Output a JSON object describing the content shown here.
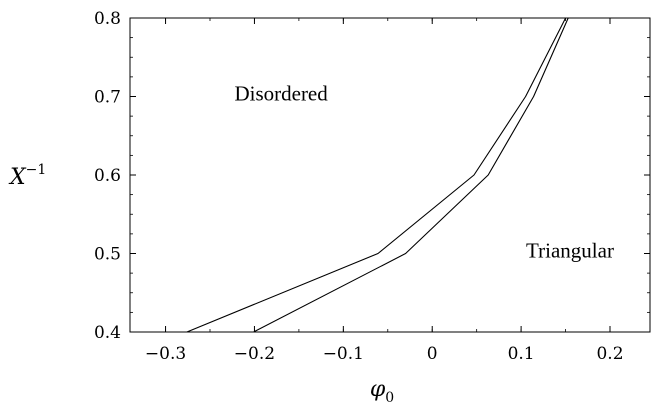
{
  "chart_data": {
    "type": "line",
    "title": "",
    "xlabel": {
      "base": "φ",
      "sub": "0"
    },
    "ylabel": {
      "base": "X",
      "sup": "−1"
    },
    "xlim": [
      -0.34,
      0.245
    ],
    "ylim": [
      0.4,
      0.8
    ],
    "x_ticks": [
      {
        "value": -0.3,
        "label": "−0.3"
      },
      {
        "value": -0.2,
        "label": "−0.2"
      },
      {
        "value": -0.1,
        "label": "−0.1"
      },
      {
        "value": 0,
        "label": "0"
      },
      {
        "value": 0.1,
        "label": "0.1"
      },
      {
        "value": 0.2,
        "label": "0.2"
      }
    ],
    "y_ticks": [
      {
        "value": 0.4,
        "label": "0.4"
      },
      {
        "value": 0.5,
        "label": "0.5"
      },
      {
        "value": 0.6,
        "label": "0.6"
      },
      {
        "value": 0.7,
        "label": "0.7"
      },
      {
        "value": 0.8,
        "label": "0.8"
      }
    ],
    "x_minor_step": 0.05,
    "y_minor_step": 0.025,
    "grid": false,
    "series": [
      {
        "x": [
          -0.276,
          -0.061,
          0.047,
          0.105,
          0.15
        ],
        "y": [
          0.4,
          0.5,
          0.6,
          0.7,
          0.8
        ]
      },
      {
        "x": [
          -0.201,
          -0.03,
          0.063,
          0.114,
          0.153
        ],
        "y": [
          0.4,
          0.5,
          0.6,
          0.7,
          0.8
        ]
      }
    ],
    "annotations": [
      {
        "text": "Disordered",
        "x": -0.17,
        "y": 0.695
      },
      {
        "text": "Triangular",
        "x": 0.155,
        "y": 0.495
      }
    ]
  }
}
